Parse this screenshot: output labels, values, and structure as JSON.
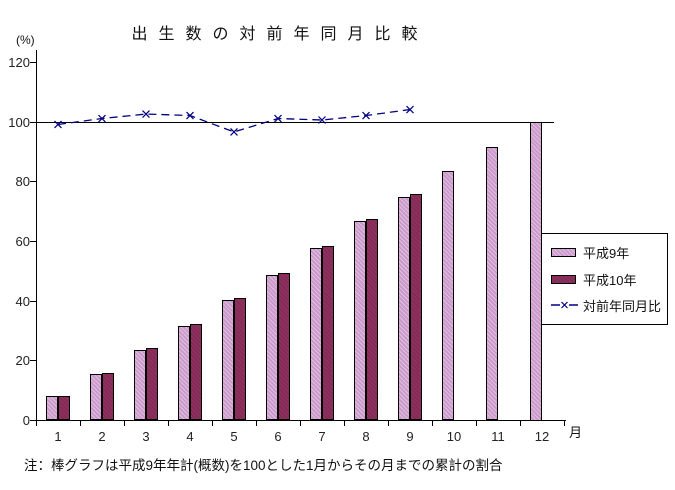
{
  "title": "出生数の対前年同月比較",
  "y_axis_unit": "(%)",
  "x_axis_unit": "月",
  "note": "注：棒グラフは平成9年年計(概数)を100とした1月からその月までの累計の割合",
  "colors": {
    "bar_heisei9": "#CC99CC",
    "bar_heisei10": "#8E2F5E",
    "ratio_line": "#000080",
    "axis": "#000000",
    "background": "#FFFFFF"
  },
  "chart_data": {
    "type": "bar",
    "subtype": "bar+line combo",
    "title": "出生数の対前年同月比較",
    "xlabel": "月",
    "ylabel": "(%)",
    "categories": [
      1,
      2,
      3,
      4,
      5,
      6,
      7,
      8,
      9,
      10,
      11,
      12
    ],
    "series": [
      {
        "name": "平成9年",
        "type": "bar",
        "color": "#CC99CC",
        "values": [
          8.0,
          15.5,
          23.4,
          31.4,
          40.3,
          48.7,
          57.7,
          66.5,
          74.8,
          83.4,
          91.4,
          100.0
        ]
      },
      {
        "name": "平成10年",
        "type": "bar",
        "color": "#8E2F5E",
        "values": [
          8.1,
          15.9,
          24.0,
          32.0,
          40.9,
          49.2,
          58.2,
          67.2,
          75.8,
          null,
          null,
          null
        ]
      },
      {
        "name": "対前年同月比",
        "type": "line",
        "color": "#000080",
        "marker": "x",
        "values": [
          99,
          101,
          102.5,
          102,
          96.5,
          101,
          100.5,
          102,
          104,
          null,
          null,
          null
        ]
      }
    ],
    "ylim": [
      0,
      120
    ],
    "ytick_step": 20,
    "reference_line": 100,
    "grid": false,
    "legend_position": "right-middle"
  }
}
